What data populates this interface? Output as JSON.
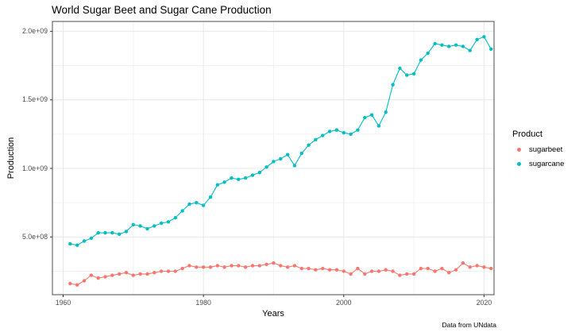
{
  "chart_data": {
    "type": "line",
    "title": "World Sugar Beet and Sugar Cane Production",
    "xlabel": "Years",
    "ylabel": "Production",
    "caption": "Data from UNdata",
    "legend_title": "Product",
    "legend_position": "right",
    "values_unit": "tonnes (values given in units of 1e9 tonnes, matching the e+09 axis)",
    "grid": true,
    "x": [
      1961,
      1962,
      1963,
      1964,
      1965,
      1966,
      1967,
      1968,
      1969,
      1970,
      1971,
      1972,
      1973,
      1974,
      1975,
      1976,
      1977,
      1978,
      1979,
      1980,
      1981,
      1982,
      1983,
      1984,
      1985,
      1986,
      1987,
      1988,
      1989,
      1990,
      1991,
      1992,
      1993,
      1994,
      1995,
      1996,
      1997,
      1998,
      1999,
      2000,
      2001,
      2002,
      2003,
      2004,
      2005,
      2006,
      2007,
      2008,
      2009,
      2010,
      2011,
      2012,
      2013,
      2014,
      2015,
      2016,
      2017,
      2018,
      2019,
      2020,
      2021
    ],
    "series": [
      {
        "name": "sugarbeet",
        "color": "#F8766D",
        "values": [
          0.16,
          0.15,
          0.18,
          0.22,
          0.2,
          0.21,
          0.22,
          0.23,
          0.24,
          0.22,
          0.23,
          0.23,
          0.24,
          0.25,
          0.25,
          0.25,
          0.27,
          0.29,
          0.28,
          0.28,
          0.28,
          0.29,
          0.28,
          0.29,
          0.29,
          0.28,
          0.29,
          0.29,
          0.3,
          0.31,
          0.29,
          0.28,
          0.29,
          0.27,
          0.27,
          0.26,
          0.27,
          0.26,
          0.26,
          0.25,
          0.23,
          0.27,
          0.23,
          0.25,
          0.25,
          0.26,
          0.25,
          0.22,
          0.23,
          0.23,
          0.27,
          0.27,
          0.25,
          0.27,
          0.24,
          0.26,
          0.31,
          0.28,
          0.29,
          0.28,
          0.27
        ]
      },
      {
        "name": "sugarcane",
        "color": "#00BFC4",
        "values": [
          0.45,
          0.44,
          0.47,
          0.49,
          0.53,
          0.53,
          0.53,
          0.52,
          0.54,
          0.59,
          0.58,
          0.56,
          0.58,
          0.6,
          0.61,
          0.64,
          0.69,
          0.74,
          0.75,
          0.73,
          0.79,
          0.88,
          0.9,
          0.93,
          0.92,
          0.93,
          0.95,
          0.97,
          1.01,
          1.05,
          1.07,
          1.1,
          1.02,
          1.11,
          1.17,
          1.21,
          1.24,
          1.27,
          1.28,
          1.26,
          1.25,
          1.28,
          1.37,
          1.39,
          1.31,
          1.41,
          1.61,
          1.73,
          1.68,
          1.69,
          1.79,
          1.84,
          1.91,
          1.9,
          1.89,
          1.9,
          1.89,
          1.86,
          1.94,
          1.96,
          1.87
        ]
      }
    ],
    "x_axis": {
      "major_ticks": [
        1960,
        1980,
        2000,
        2020
      ],
      "major_tick_labels": [
        "1960",
        "1980",
        "2000",
        "2020"
      ],
      "minor_ticks": [
        1970,
        1990,
        2010
      ]
    },
    "y_axis": {
      "major_ticks": [
        0.5,
        1.0,
        1.5,
        2.0
      ],
      "major_tick_labels": [
        "5.0e+08",
        "1.0e+09",
        "1.5e+09",
        "2.0e+09"
      ],
      "minor_ticks": [
        0.25,
        0.75,
        1.25,
        1.75
      ]
    },
    "colors": {
      "panel_background": "#ffffff",
      "panel_border": "#4d4d4d",
      "grid_major": "#e8e8e8",
      "grid_minor": "#f2f2f2",
      "tick_text": "#4d4d4d"
    }
  }
}
